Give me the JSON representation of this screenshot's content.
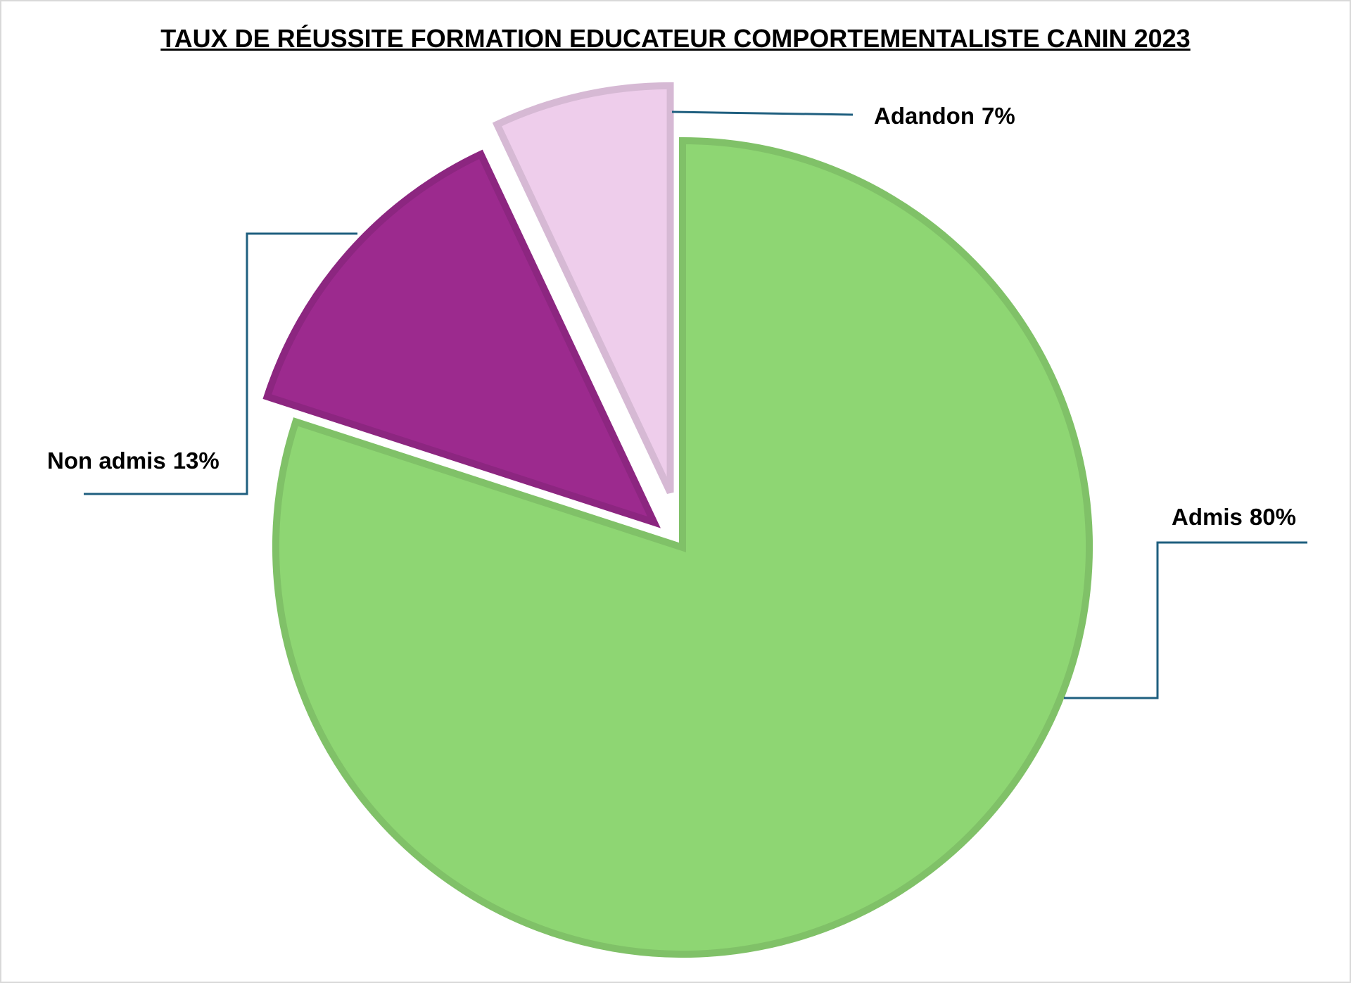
{
  "chart_data": {
    "type": "pie",
    "title": "TAUX DE RÉUSSITE FORMATION EDUCATEUR COMPORTEMENTALISTE CANIN 2023",
    "categories": [
      "Admis",
      "Non admis",
      "Adandon"
    ],
    "values": [
      80,
      13,
      7
    ],
    "value_labels": [
      "80%",
      "13%",
      "7%"
    ],
    "colors": [
      "#8ed673",
      "#9c2a8e",
      "#eecdeb"
    ],
    "exploded": [
      false,
      true,
      true
    ]
  }
}
